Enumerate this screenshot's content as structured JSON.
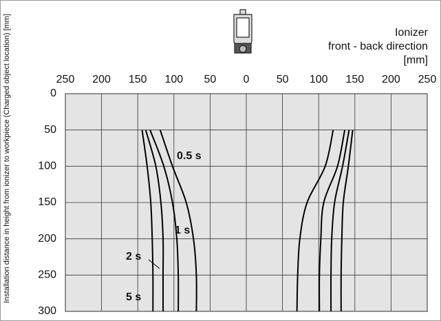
{
  "chart_data": {
    "type": "line",
    "y_axis_label": "Installation distance in height from ionizer to workpiece (Charged object location) [mm]",
    "annotation_lines": [
      "Ionizer",
      "front - back direction",
      "[mm]"
    ],
    "xlim": [
      -250,
      250
    ],
    "xticks": [
      {
        "value": -250,
        "label": "250"
      },
      {
        "value": -200,
        "label": "200"
      },
      {
        "value": -150,
        "label": "150"
      },
      {
        "value": -100,
        "label": "100"
      },
      {
        "value": -50,
        "label": "50"
      },
      0,
      50,
      100,
      150,
      200,
      250
    ],
    "ylim": [
      0,
      300
    ],
    "yticks": [
      0,
      50,
      100,
      150,
      200,
      250,
      300
    ],
    "y_inverted": true,
    "grid": true,
    "y": [
      50,
      100,
      150,
      200,
      250,
      300
    ],
    "series": [
      {
        "name": "0.5 s",
        "color": "#000000",
        "left": [
          -119,
          -102,
          -83,
          -73,
          -69,
          -69
        ],
        "right": [
          120,
          109,
          84,
          74,
          71,
          70
        ]
      },
      {
        "name": "1 s",
        "color": "#000000",
        "left": [
          -133,
          -114,
          -102,
          -96,
          -94,
          -94
        ],
        "right": [
          136,
          126,
          107,
          103,
          101,
          101
        ]
      },
      {
        "name": "2 s",
        "color": "#000000",
        "left": [
          -139,
          -125,
          -118,
          -115,
          -115,
          -115
        ],
        "right": [
          142,
          133,
          122,
          118,
          117,
          117
        ]
      },
      {
        "name": "5 s",
        "color": "#000000",
        "left": [
          -144,
          -137,
          -132,
          -130,
          -129,
          -129
        ],
        "right": [
          147,
          141,
          134,
          132,
          131,
          131
        ]
      }
    ]
  }
}
